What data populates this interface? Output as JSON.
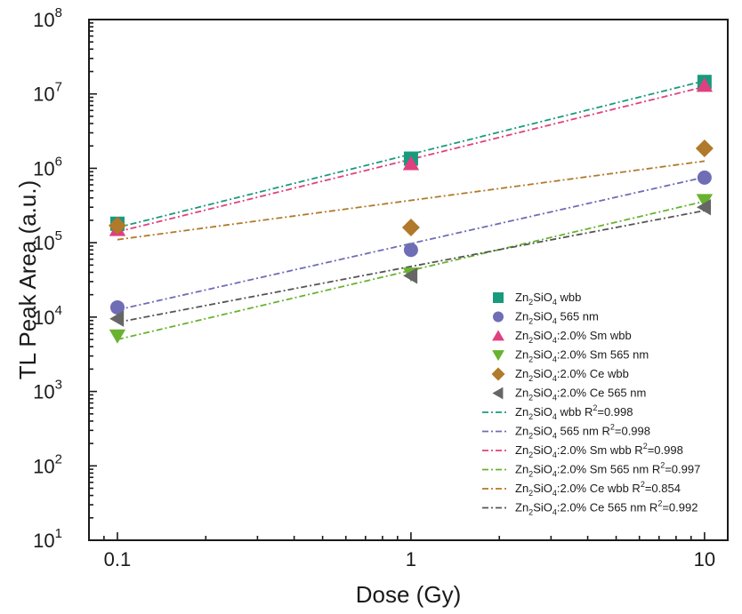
{
  "chart_data": {
    "type": "scatter",
    "xscale": "log",
    "yscale": "log",
    "xlabel": "Dose (Gy)",
    "ylabel": "TL Peak Area (a.u.)",
    "xlim": [
      0.08,
      12
    ],
    "ylim": [
      10,
      100000000
    ],
    "x_ticks": [
      {
        "value": 0.1,
        "label": "0.1"
      },
      {
        "value": 1,
        "label": "1"
      },
      {
        "value": 10,
        "label": "10"
      }
    ],
    "y_ticks": [
      {
        "value": 10,
        "base": "10",
        "exp": "1"
      },
      {
        "value": 100,
        "base": "10",
        "exp": "2"
      },
      {
        "value": 1000,
        "base": "10",
        "exp": "3"
      },
      {
        "value": 10000,
        "base": "10",
        "exp": "4"
      },
      {
        "value": 100000,
        "base": "10",
        "exp": "5"
      },
      {
        "value": 1000000,
        "base": "10",
        "exp": "6"
      },
      {
        "value": 10000000,
        "base": "10",
        "exp": "7"
      },
      {
        "value": 100000000,
        "base": "10",
        "exp": "8"
      }
    ],
    "grid": false,
    "legend_position": "bottom-right",
    "series": [
      {
        "key": "zs_wbb",
        "label_parts": [
          "Zn",
          "2",
          "SiO",
          "4",
          " wbb"
        ],
        "marker": "square",
        "color": "#1a9a7c",
        "points": [
          {
            "x": 0.1,
            "y": 180000
          },
          {
            "x": 1,
            "y": 1350000
          },
          {
            "x": 10,
            "y": 14500000
          }
        ]
      },
      {
        "key": "zs_565",
        "label_parts": [
          "Zn",
          "2",
          "SiO",
          "4",
          " 565 nm"
        ],
        "marker": "circle",
        "color": "#6f6db5",
        "points": [
          {
            "x": 0.1,
            "y": 13500
          },
          {
            "x": 1,
            "y": 80000
          },
          {
            "x": 10,
            "y": 750000
          }
        ]
      },
      {
        "key": "sm_wbb",
        "label_parts": [
          "Zn",
          "2",
          "SiO",
          "4",
          ":2.0% Sm wbb"
        ],
        "marker": "triangle-up",
        "color": "#e0407f",
        "points": [
          {
            "x": 0.1,
            "y": 150000
          },
          {
            "x": 1,
            "y": 1150000
          },
          {
            "x": 10,
            "y": 13000000
          }
        ]
      },
      {
        "key": "sm_565",
        "label_parts": [
          "Zn",
          "2",
          "SiO",
          "4",
          ":2.0% Sm 565 nm"
        ],
        "marker": "triangle-down",
        "color": "#69b230",
        "points": [
          {
            "x": 0.1,
            "y": 5600
          },
          {
            "x": 1,
            "y": 38000
          },
          {
            "x": 10,
            "y": 370000
          }
        ]
      },
      {
        "key": "ce_wbb",
        "label_parts": [
          "Zn",
          "2",
          "SiO",
          "4",
          ":2.0% Ce wbb"
        ],
        "marker": "diamond",
        "color": "#b07a2a",
        "points": [
          {
            "x": 0.1,
            "y": 170000
          },
          {
            "x": 1,
            "y": 160000
          },
          {
            "x": 10,
            "y": 1850000
          }
        ]
      },
      {
        "key": "ce_565",
        "label_parts": [
          "Zn",
          "2",
          "SiO",
          "4",
          ":2.0% Ce 565 nm"
        ],
        "marker": "triangle-left",
        "color": "#666666",
        "points": [
          {
            "x": 0.1,
            "y": 9500
          },
          {
            "x": 1,
            "y": 36000
          },
          {
            "x": 10,
            "y": 300000
          }
        ]
      }
    ],
    "fits": [
      {
        "key": "fit_zs_wbb",
        "label_parts": [
          "Zn",
          "2",
          "SiO",
          "4",
          " wbb R",
          "2",
          "=0.998"
        ],
        "color": "#1a9a7c",
        "from": {
          "x": 0.1,
          "y": 160000
        },
        "to": {
          "x": 10,
          "y": 15000000
        }
      },
      {
        "key": "fit_zs_565",
        "label_parts": [
          "Zn",
          "2",
          "SiO",
          "4",
          " 565 nm R",
          "2",
          "=0.998"
        ],
        "color": "#6f6db5",
        "from": {
          "x": 0.1,
          "y": 12500
        },
        "to": {
          "x": 10,
          "y": 760000
        }
      },
      {
        "key": "fit_sm_wbb",
        "label_parts": [
          "Zn",
          "2",
          "SiO",
          "4",
          ":2.0% Sm wbb R",
          "2",
          "=0.998"
        ],
        "color": "#e0407f",
        "from": {
          "x": 0.1,
          "y": 140000
        },
        "to": {
          "x": 10,
          "y": 12500000
        }
      },
      {
        "key": "fit_sm_565",
        "label_parts": [
          "Zn",
          "2",
          "SiO",
          "4",
          ":2.0% Sm 565 nm R",
          "2",
          "=0.997"
        ],
        "color": "#69b230",
        "from": {
          "x": 0.1,
          "y": 5000
        },
        "to": {
          "x": 10,
          "y": 360000
        }
      },
      {
        "key": "fit_ce_wbb",
        "label_parts": [
          "Zn",
          "2",
          "SiO",
          "4",
          ":2.0% Ce wbb R",
          "2",
          "=0.854"
        ],
        "color": "#b07a2a",
        "from": {
          "x": 0.1,
          "y": 110000
        },
        "to": {
          "x": 10,
          "y": 1250000
        }
      },
      {
        "key": "fit_ce_565",
        "label_parts": [
          "Zn",
          "2",
          "SiO",
          "4",
          ":2.0% Ce 565 nm R",
          "2",
          "=0.992"
        ],
        "color": "#555555",
        "from": {
          "x": 0.1,
          "y": 8500
        },
        "to": {
          "x": 10,
          "y": 270000
        }
      }
    ]
  }
}
